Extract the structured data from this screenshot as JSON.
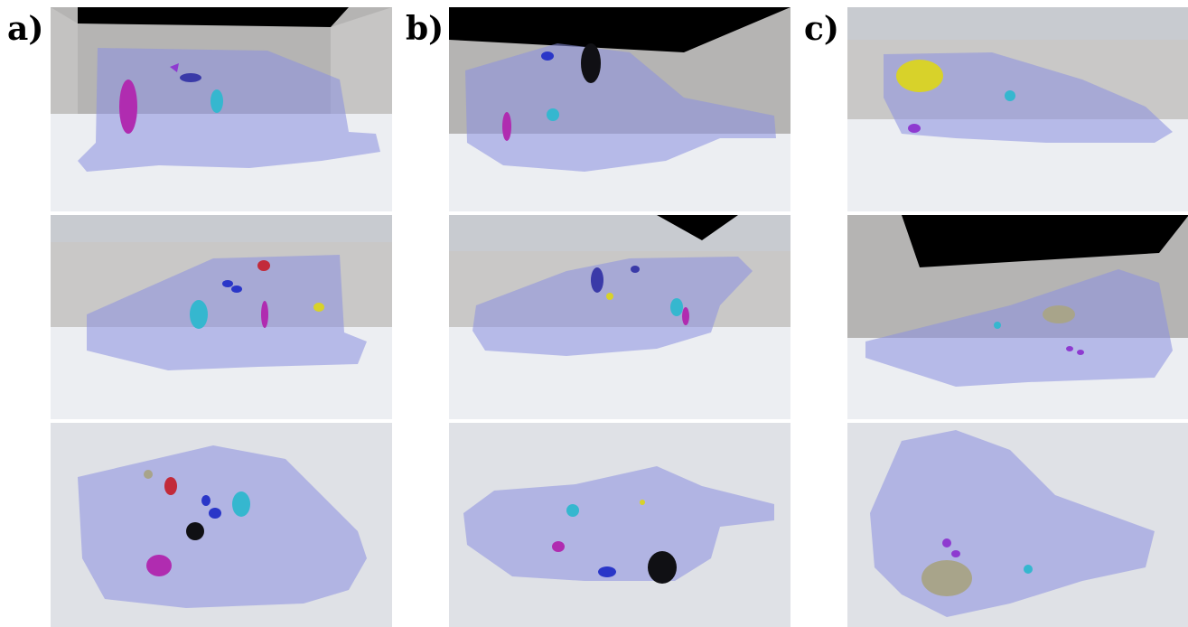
{
  "figure": {
    "columns": [
      {
        "label": "a)",
        "views": [
          "side-view",
          "side-view",
          "top-view"
        ]
      },
      {
        "label": "b)",
        "views": [
          "side-view",
          "side-view",
          "top-view"
        ]
      },
      {
        "label": "c)",
        "views": [
          "side-view",
          "side-view",
          "top-view"
        ]
      }
    ]
  },
  "colors": {
    "organ": "#8a8fe0",
    "room_wall": "#b8b7b6",
    "room_floor": "#eef0f3",
    "ceiling": "#000000",
    "magenta": "#b02cb0",
    "blue": "#2a36c8",
    "cyan": "#35b7cf",
    "red": "#c22a3a",
    "black": "#101014",
    "yellow": "#d8d22a",
    "purple": "#8e3ad0",
    "olive": "#a8a48a"
  }
}
